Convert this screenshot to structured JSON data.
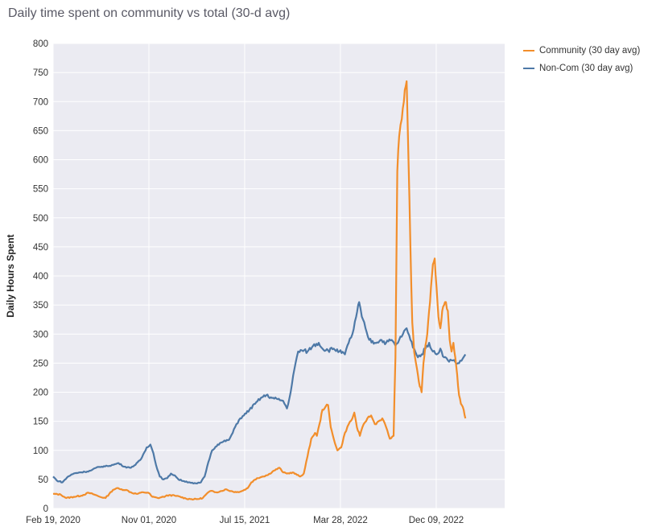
{
  "chart_data": {
    "type": "line",
    "title": "Daily time spent on community vs total (30-d avg)",
    "xlabel": "",
    "ylabel": "Daily Hours Spent",
    "ylim": [
      0,
      800
    ],
    "yticks": [
      "0",
      "50",
      "100",
      "150",
      "200",
      "250",
      "300",
      "350",
      "400",
      "450",
      "500",
      "550",
      "600",
      "650",
      "700",
      "750",
      "800"
    ],
    "xticks": [
      "Feb 19, 2020",
      "Nov 01, 2020",
      "Jul 15, 2021",
      "Mar 28, 2022",
      "Dec 09, 2022"
    ],
    "xtick_days": [
      0,
      256,
      512,
      768,
      1024
    ],
    "xrange_days": [
      0,
      1207
    ],
    "series": [
      {
        "name": "Community (30 day avg)",
        "color": "#f28e2b",
        "points": [
          [
            0,
            25
          ],
          [
            20,
            24
          ],
          [
            35,
            18
          ],
          [
            55,
            20
          ],
          [
            75,
            22
          ],
          [
            95,
            27
          ],
          [
            110,
            24
          ],
          [
            125,
            20
          ],
          [
            140,
            18
          ],
          [
            150,
            25
          ],
          [
            160,
            32
          ],
          [
            170,
            35
          ],
          [
            180,
            33
          ],
          [
            195,
            32
          ],
          [
            210,
            27
          ],
          [
            225,
            25
          ],
          [
            240,
            28
          ],
          [
            255,
            27
          ],
          [
            265,
            20
          ],
          [
            280,
            18
          ],
          [
            295,
            20
          ],
          [
            310,
            23
          ],
          [
            325,
            22
          ],
          [
            340,
            20
          ],
          [
            355,
            17
          ],
          [
            370,
            16
          ],
          [
            385,
            16
          ],
          [
            400,
            18
          ],
          [
            410,
            25
          ],
          [
            420,
            30
          ],
          [
            435,
            28
          ],
          [
            450,
            30
          ],
          [
            460,
            33
          ],
          [
            475,
            30
          ],
          [
            490,
            28
          ],
          [
            505,
            30
          ],
          [
            520,
            35
          ],
          [
            530,
            45
          ],
          [
            545,
            52
          ],
          [
            560,
            55
          ],
          [
            575,
            58
          ],
          [
            590,
            65
          ],
          [
            605,
            70
          ],
          [
            615,
            62
          ],
          [
            625,
            60
          ],
          [
            640,
            62
          ],
          [
            660,
            55
          ],
          [
            670,
            60
          ],
          [
            680,
            90
          ],
          [
            690,
            120
          ],
          [
            700,
            130
          ],
          [
            705,
            125
          ],
          [
            712,
            145
          ],
          [
            720,
            170
          ],
          [
            728,
            175
          ],
          [
            735,
            178
          ],
          [
            742,
            140
          ],
          [
            750,
            120
          ],
          [
            760,
            100
          ],
          [
            770,
            105
          ],
          [
            780,
            130
          ],
          [
            790,
            145
          ],
          [
            800,
            155
          ],
          [
            805,
            165
          ],
          [
            812,
            140
          ],
          [
            820,
            125
          ],
          [
            830,
            145
          ],
          [
            840,
            155
          ],
          [
            850,
            160
          ],
          [
            860,
            145
          ],
          [
            870,
            150
          ],
          [
            880,
            155
          ],
          [
            890,
            140
          ],
          [
            900,
            120
          ],
          [
            910,
            125
          ],
          [
            915,
            260
          ],
          [
            920,
            580
          ],
          [
            925,
            640
          ],
          [
            932,
            670
          ],
          [
            940,
            720
          ],
          [
            945,
            735
          ],
          [
            950,
            600
          ],
          [
            955,
            450
          ],
          [
            960,
            320
          ],
          [
            965,
            270
          ],
          [
            970,
            250
          ],
          [
            975,
            230
          ],
          [
            980,
            210
          ],
          [
            985,
            200
          ],
          [
            990,
            250
          ],
          [
            995,
            280
          ],
          [
            1000,
            300
          ],
          [
            1005,
            340
          ],
          [
            1010,
            380
          ],
          [
            1015,
            420
          ],
          [
            1020,
            430
          ],
          [
            1025,
            380
          ],
          [
            1030,
            330
          ],
          [
            1035,
            310
          ],
          [
            1040,
            340
          ],
          [
            1045,
            350
          ],
          [
            1050,
            355
          ],
          [
            1055,
            340
          ],
          [
            1060,
            290
          ],
          [
            1065,
            270
          ],
          [
            1070,
            285
          ],
          [
            1075,
            260
          ],
          [
            1080,
            230
          ],
          [
            1085,
            195
          ],
          [
            1090,
            180
          ],
          [
            1095,
            175
          ],
          [
            1100,
            160
          ],
          [
            1102,
            155
          ]
        ]
      },
      {
        "name": "Non-Com (30 day avg)",
        "color": "#4e79a7",
        "points": [
          [
            0,
            55
          ],
          [
            10,
            48
          ],
          [
            25,
            45
          ],
          [
            40,
            55
          ],
          [
            55,
            60
          ],
          [
            70,
            62
          ],
          [
            85,
            63
          ],
          [
            100,
            65
          ],
          [
            115,
            70
          ],
          [
            130,
            72
          ],
          [
            145,
            73
          ],
          [
            160,
            75
          ],
          [
            175,
            78
          ],
          [
            190,
            72
          ],
          [
            205,
            70
          ],
          [
            220,
            75
          ],
          [
            235,
            85
          ],
          [
            250,
            105
          ],
          [
            260,
            110
          ],
          [
            268,
            95
          ],
          [
            275,
            75
          ],
          [
            285,
            55
          ],
          [
            295,
            50
          ],
          [
            305,
            52
          ],
          [
            315,
            60
          ],
          [
            325,
            57
          ],
          [
            335,
            50
          ],
          [
            350,
            47
          ],
          [
            365,
            45
          ],
          [
            375,
            43
          ],
          [
            385,
            43
          ],
          [
            395,
            45
          ],
          [
            405,
            55
          ],
          [
            415,
            80
          ],
          [
            425,
            100
          ],
          [
            440,
            110
          ],
          [
            455,
            115
          ],
          [
            470,
            118
          ],
          [
            480,
            130
          ],
          [
            490,
            145
          ],
          [
            500,
            155
          ],
          [
            510,
            160
          ],
          [
            525,
            170
          ],
          [
            540,
            180
          ],
          [
            555,
            190
          ],
          [
            570,
            195
          ],
          [
            585,
            190
          ],
          [
            600,
            188
          ],
          [
            615,
            185
          ],
          [
            625,
            172
          ],
          [
            635,
            200
          ],
          [
            645,
            240
          ],
          [
            655,
            270
          ],
          [
            665,
            272
          ],
          [
            680,
            270
          ],
          [
            695,
            280
          ],
          [
            710,
            285
          ],
          [
            720,
            275
          ],
          [
            735,
            272
          ],
          [
            750,
            275
          ],
          [
            765,
            270
          ],
          [
            780,
            265
          ],
          [
            790,
            285
          ],
          [
            800,
            300
          ],
          [
            810,
            330
          ],
          [
            818,
            355
          ],
          [
            825,
            330
          ],
          [
            835,
            310
          ],
          [
            845,
            290
          ],
          [
            860,
            285
          ],
          [
            875,
            290
          ],
          [
            890,
            285
          ],
          [
            905,
            290
          ],
          [
            915,
            280
          ],
          [
            925,
            290
          ],
          [
            935,
            300
          ],
          [
            945,
            310
          ],
          [
            955,
            290
          ],
          [
            965,
            275
          ],
          [
            975,
            260
          ],
          [
            985,
            265
          ],
          [
            995,
            275
          ],
          [
            1005,
            285
          ],
          [
            1015,
            270
          ],
          [
            1025,
            265
          ],
          [
            1035,
            275
          ],
          [
            1045,
            260
          ],
          [
            1055,
            255
          ],
          [
            1065,
            255
          ],
          [
            1075,
            252
          ],
          [
            1085,
            250
          ],
          [
            1095,
            258
          ],
          [
            1102,
            265
          ]
        ]
      }
    ],
    "legend_position": "top-right"
  }
}
